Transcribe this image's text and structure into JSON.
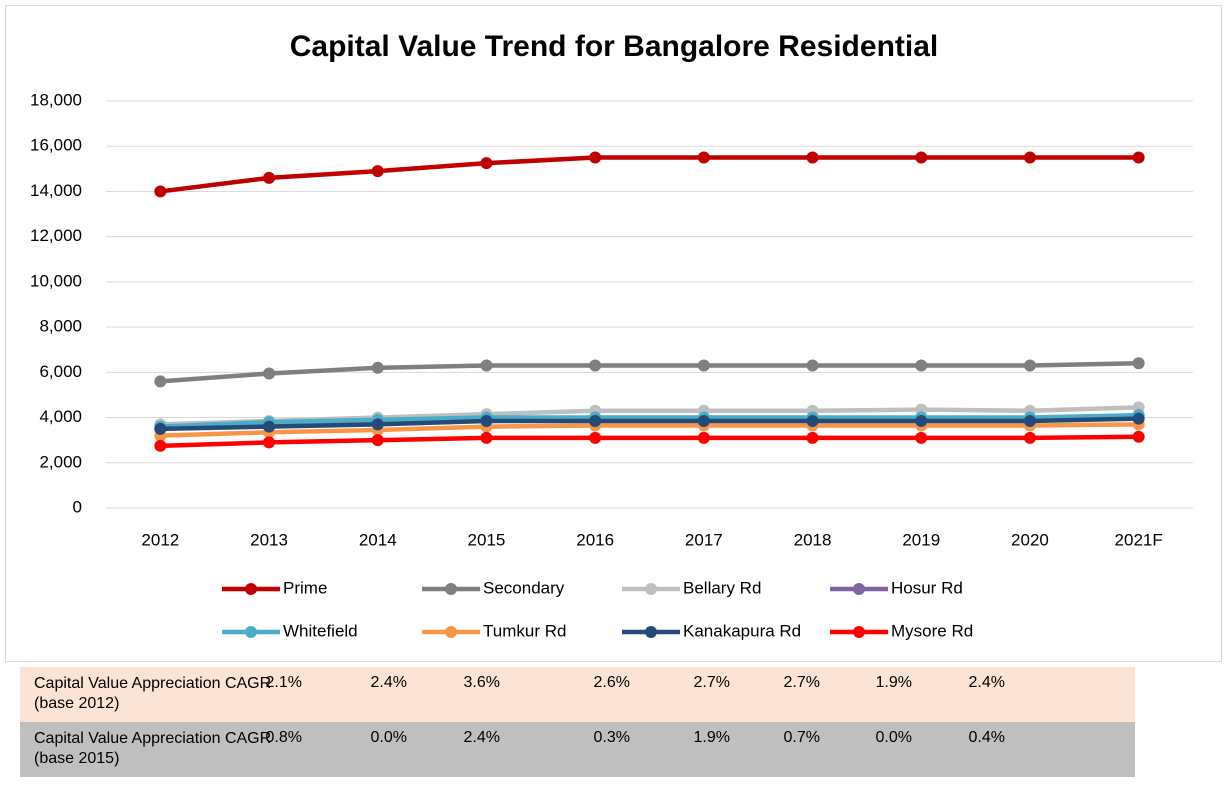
{
  "chart_data": {
    "type": "line",
    "title": "Capital Value Trend for Bangalore Residential",
    "categories": [
      "2012",
      "2013",
      "2014",
      "2015",
      "2016",
      "2017",
      "2018",
      "2019",
      "2020",
      "2021F"
    ],
    "ylim": [
      0,
      18000
    ],
    "yticks": [
      0,
      {
        "value": 2000,
        "label": "2,000"
      },
      {
        "value": 4000,
        "label": "4,000"
      },
      {
        "value": 6000,
        "label": "6,000"
      },
      {
        "value": 8000,
        "label": "8,000"
      },
      {
        "value": 10000,
        "label": "10,000"
      },
      {
        "value": 12000,
        "label": "12,000"
      },
      {
        "value": 14000,
        "label": "14,000"
      },
      {
        "value": 16000,
        "label": "16,000"
      },
      {
        "value": 18000,
        "label": "18,000"
      }
    ],
    "grid": true,
    "legend": "bottom",
    "series": [
      {
        "name": "Prime",
        "color": "#c00000",
        "values": [
          14000,
          14600,
          14900,
          15250,
          15500,
          15500,
          15500,
          15500,
          15500,
          15500
        ]
      },
      {
        "name": "Secondary",
        "color": "#7f7f7f",
        "values": [
          5600,
          5950,
          6200,
          6300,
          6300,
          6300,
          6300,
          6300,
          6300,
          6400
        ]
      },
      {
        "name": "Bellary Rd",
        "color": "#bfbfbf",
        "values": [
          3700,
          3850,
          4000,
          4150,
          4300,
          4300,
          4300,
          4350,
          4300,
          4450
        ]
      },
      {
        "name": "Hosur Rd",
        "color": "#8064a2",
        "values": [
          3500,
          3700,
          3800,
          3900,
          3950,
          3950,
          3950,
          3950,
          3950,
          4100
        ]
      },
      {
        "name": "Whitefield",
        "color": "#4bacc6",
        "values": [
          3600,
          3800,
          3900,
          4000,
          4000,
          4000,
          4000,
          4000,
          4000,
          4100
        ]
      },
      {
        "name": "Tumkur Rd",
        "color": "#f79646",
        "values": [
          3200,
          3350,
          3450,
          3600,
          3650,
          3650,
          3650,
          3650,
          3650,
          3700
        ]
      },
      {
        "name": "Kanakapura Rd",
        "color": "#244a7a",
        "values": [
          3500,
          3600,
          3700,
          3850,
          3850,
          3850,
          3850,
          3850,
          3850,
          3950
        ]
      },
      {
        "name": "Mysore Rd",
        "color": "#ff0000",
        "values": [
          2750,
          2900,
          3000,
          3100,
          3100,
          3100,
          3100,
          3100,
          3100,
          3150
        ]
      }
    ]
  },
  "table": {
    "rows": [
      {
        "label": "Capital Value Appreciation CAGR (base 2012)",
        "values": [
          "2.1%",
          "2.4%",
          "3.6%",
          "2.6%",
          "2.7%",
          "2.7%",
          "1.9%",
          "2.4%"
        ]
      },
      {
        "label": "Capital Value Appreciation CAGR (base 2015)",
        "values": [
          "0.8%",
          "0.0%",
          "2.4%",
          "0.3%",
          "1.9%",
          "0.7%",
          "0.0%",
          "0.4%"
        ]
      }
    ]
  }
}
